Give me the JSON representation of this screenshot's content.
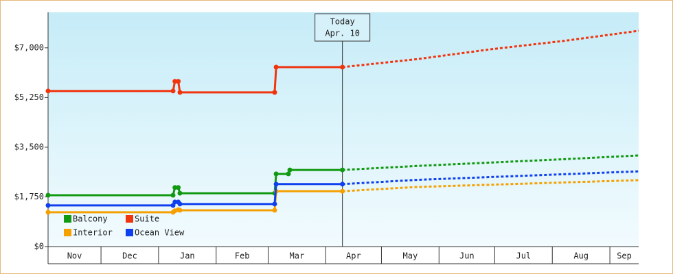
{
  "chart_data": {
    "type": "line",
    "xlim": [
      1.5,
      319.5
    ],
    "xticks": [
      {
        "value": 0,
        "label": "Nov"
      },
      {
        "value": 30,
        "label": "Dec"
      },
      {
        "value": 61,
        "label": "Jan"
      },
      {
        "value": 92,
        "label": "Feb"
      },
      {
        "value": 120,
        "label": "Mar"
      },
      {
        "value": 151,
        "label": "Apr"
      },
      {
        "value": 181,
        "label": "May"
      },
      {
        "value": 212,
        "label": "Jun"
      },
      {
        "value": 242,
        "label": "Jul"
      },
      {
        "value": 273,
        "label": "Aug"
      },
      {
        "value": 304,
        "label": "Sep"
      }
    ],
    "ylim": [
      0,
      8250
    ],
    "yticks": [
      {
        "value": 0,
        "label": "$0"
      },
      {
        "value": 1750,
        "label": "$1,750"
      },
      {
        "value": 3500,
        "label": "$3,500"
      },
      {
        "value": 5250,
        "label": "$5,250"
      },
      {
        "value": 7000,
        "label": "$7,000"
      }
    ],
    "today": {
      "x": 160,
      "label": [
        "Today",
        "Apr. 10"
      ]
    },
    "series": [
      {
        "name": "Balcony",
        "color": "#119911",
        "x": [
          1.5,
          68.8,
          69.8,
          71.6,
          72.5,
          123.5,
          124.3,
          130.9,
          131.7,
          160,
          200,
          240,
          280,
          319.5
        ],
        "values": [
          1810,
          1810,
          2080,
          2080,
          1880,
          1880,
          2560,
          2560,
          2700,
          2700,
          2840,
          2960,
          3080,
          3210
        ]
      },
      {
        "name": "Suite",
        "color": "#f0340e",
        "x": [
          1.5,
          68.8,
          69.8,
          71.6,
          72.5,
          123.5,
          124.3,
          160,
          200,
          240,
          280,
          319.5
        ],
        "values": [
          5480,
          5480,
          5820,
          5820,
          5430,
          5430,
          6320,
          6320,
          6600,
          6950,
          7250,
          7600
        ]
      },
      {
        "name": "Interior",
        "color": "#f5a000",
        "x": [
          1.5,
          68.8,
          69.8,
          71.6,
          72.5,
          123.5,
          124.3,
          160,
          200,
          240,
          280,
          319.5
        ],
        "values": [
          1210,
          1210,
          1260,
          1300,
          1280,
          1280,
          1950,
          1950,
          2100,
          2180,
          2260,
          2340
        ]
      },
      {
        "name": "Ocean View",
        "color": "#1040ee",
        "x": [
          1.5,
          68.8,
          69.8,
          71.6,
          72.5,
          123.5,
          124.3,
          160,
          200,
          240,
          280,
          319.5
        ],
        "values": [
          1450,
          1450,
          1570,
          1570,
          1500,
          1500,
          2200,
          2200,
          2350,
          2450,
          2550,
          2650
        ]
      }
    ]
  }
}
